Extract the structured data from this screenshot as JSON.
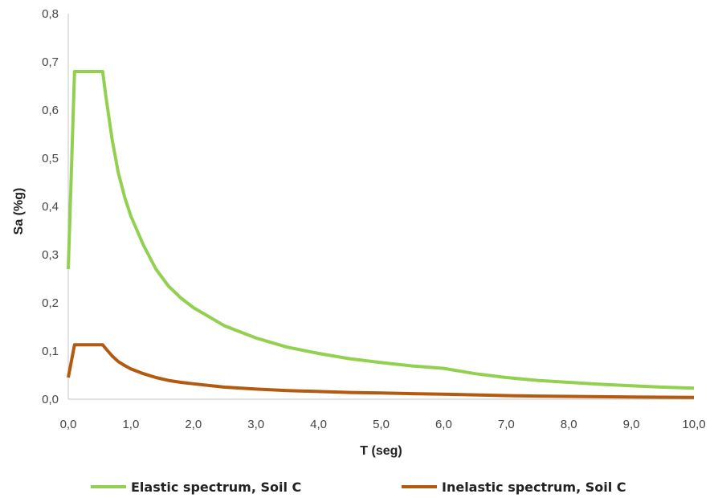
{
  "chart_data": {
    "type": "line",
    "title": "",
    "xlabel": "T (seg)",
    "ylabel": "Sa (%g)",
    "xlim": [
      0,
      10
    ],
    "ylim": [
      0,
      0.8
    ],
    "xticks": [
      "0,0",
      "1,0",
      "2,0",
      "3,0",
      "4,0",
      "5,0",
      "6,0",
      "7,0",
      "8,0",
      "9,0",
      "10,0"
    ],
    "yticks": [
      "0,0",
      "0,1",
      "0,2",
      "0,3",
      "0,4",
      "0,5",
      "0,6",
      "0,7",
      "0,8"
    ],
    "grid": false,
    "legend_position": "bottom",
    "series": [
      {
        "name": "Elastic spectrum, Soil C",
        "color": "#92d050",
        "points": [
          [
            0.0,
            0.27
          ],
          [
            0.1,
            0.68
          ],
          [
            0.55,
            0.68
          ],
          [
            0.6,
            0.63
          ],
          [
            0.7,
            0.54
          ],
          [
            0.8,
            0.47
          ],
          [
            0.9,
            0.42
          ],
          [
            1.0,
            0.38
          ],
          [
            1.2,
            0.32
          ],
          [
            1.4,
            0.27
          ],
          [
            1.6,
            0.235
          ],
          [
            1.8,
            0.21
          ],
          [
            2.0,
            0.19
          ],
          [
            2.5,
            0.152
          ],
          [
            3.0,
            0.127
          ],
          [
            3.5,
            0.108
          ],
          [
            4.0,
            0.095
          ],
          [
            4.5,
            0.084
          ],
          [
            5.0,
            0.076
          ],
          [
            5.5,
            0.069
          ],
          [
            6.0,
            0.064
          ],
          [
            6.5,
            0.053
          ],
          [
            7.0,
            0.045
          ],
          [
            7.5,
            0.039
          ],
          [
            8.0,
            0.035
          ],
          [
            8.5,
            0.031
          ],
          [
            9.0,
            0.028
          ],
          [
            9.5,
            0.025
          ],
          [
            10.0,
            0.023
          ]
        ]
      },
      {
        "name": "Inelastic spectrum, Soil C",
        "color": "#b35a10",
        "points": [
          [
            0.0,
            0.045
          ],
          [
            0.1,
            0.113
          ],
          [
            0.55,
            0.113
          ],
          [
            0.6,
            0.105
          ],
          [
            0.7,
            0.09
          ],
          [
            0.8,
            0.078
          ],
          [
            0.9,
            0.07
          ],
          [
            1.0,
            0.063
          ],
          [
            1.2,
            0.053
          ],
          [
            1.4,
            0.045
          ],
          [
            1.6,
            0.039
          ],
          [
            1.8,
            0.035
          ],
          [
            2.0,
            0.032
          ],
          [
            2.5,
            0.025
          ],
          [
            3.0,
            0.021
          ],
          [
            3.5,
            0.018
          ],
          [
            4.0,
            0.016
          ],
          [
            4.5,
            0.014
          ],
          [
            5.0,
            0.013
          ],
          [
            5.5,
            0.0115
          ],
          [
            6.0,
            0.0105
          ],
          [
            6.5,
            0.009
          ],
          [
            7.0,
            0.0075
          ],
          [
            7.5,
            0.0065
          ],
          [
            8.0,
            0.0058
          ],
          [
            8.5,
            0.0052
          ],
          [
            9.0,
            0.0047
          ],
          [
            9.5,
            0.0042
          ],
          [
            10.0,
            0.0038
          ]
        ]
      }
    ]
  }
}
